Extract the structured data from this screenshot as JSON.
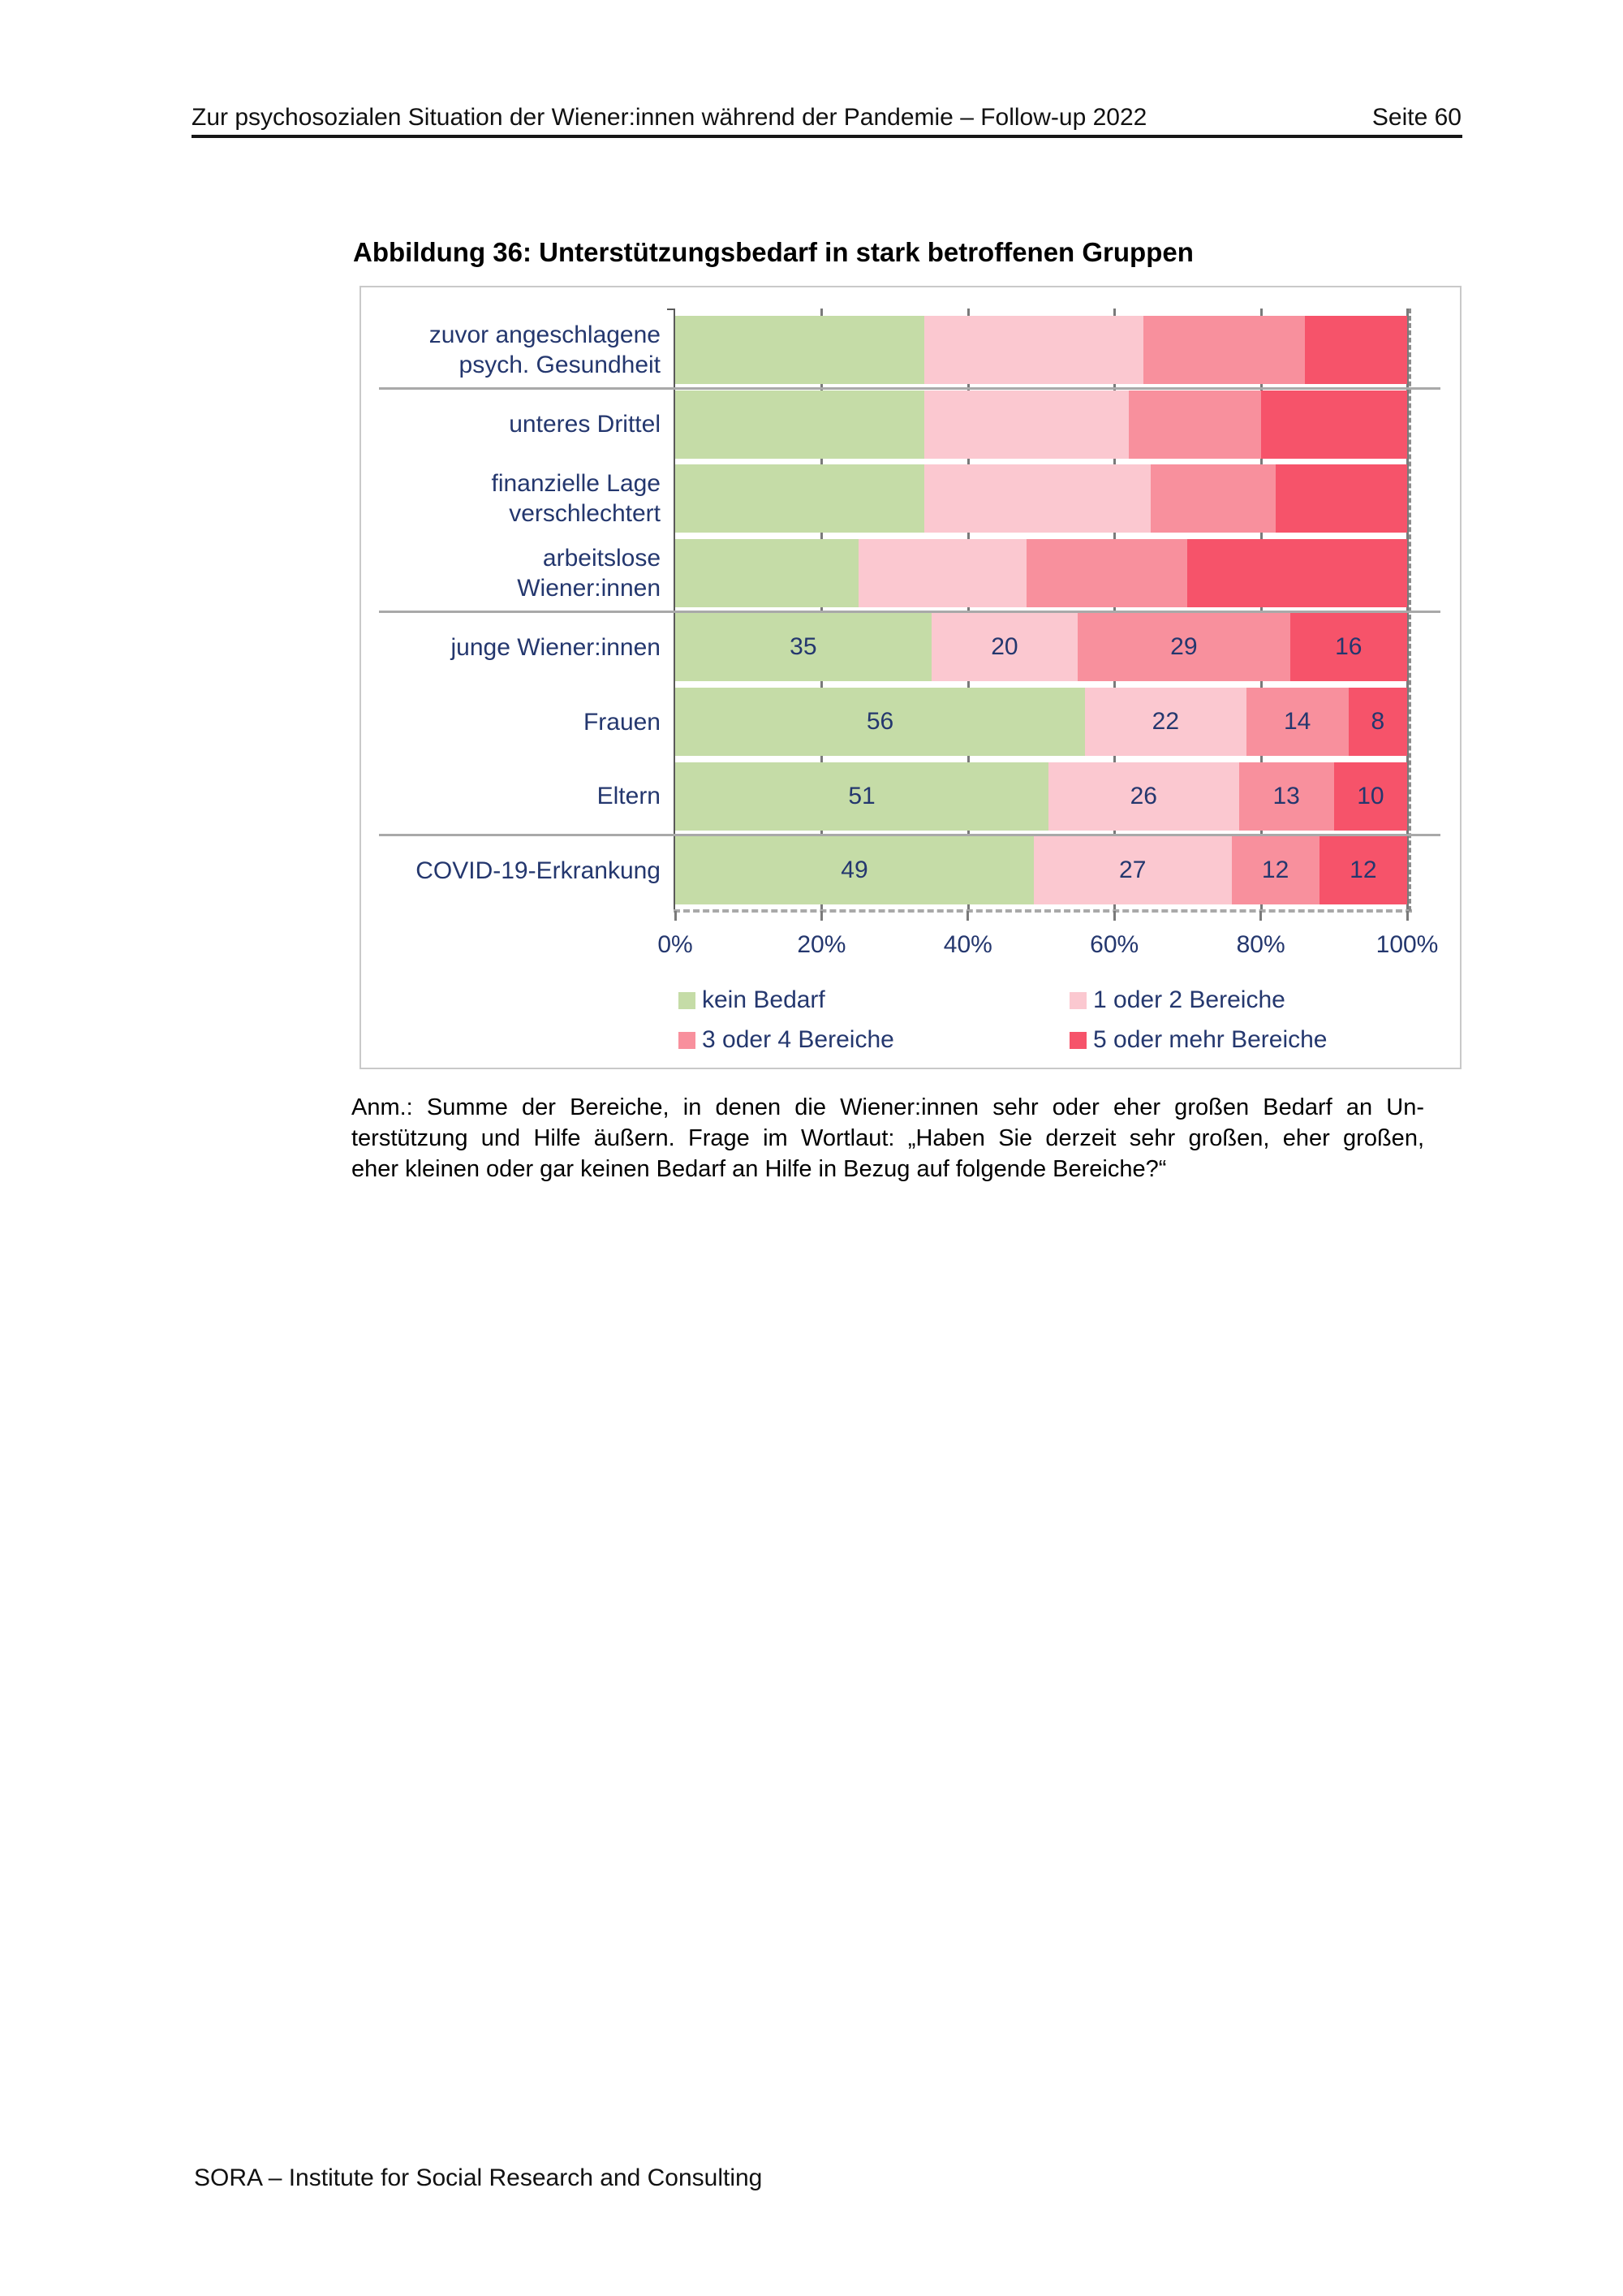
{
  "header": {
    "title": "Zur psychosozialen Situation der Wiener:innen während der Pandemie – Follow-up 2022",
    "page_label": "Seite 60"
  },
  "figure": {
    "title": "Abbildung 36: Unterstützungsbedarf in stark betroffenen Gruppen"
  },
  "chart_data": {
    "type": "bar",
    "stacked": true,
    "orientation": "horizontal",
    "categories": [
      [
        "zuvor angeschlagene",
        "psych. Gesundheit"
      ],
      [
        "unteres Drittel"
      ],
      [
        "finanzielle Lage",
        "verschlechtert"
      ],
      [
        "arbeitslose",
        "Wiener:innen"
      ],
      [
        "junge Wiener:innen"
      ],
      [
        "Frauen"
      ],
      [
        "Eltern"
      ],
      [
        "COVID-19-Erkrankung"
      ]
    ],
    "series": [
      {
        "name": "kein Bedarf",
        "color": "#c5dca7",
        "values": [
          34,
          34,
          34,
          25,
          35,
          56,
          51,
          49
        ]
      },
      {
        "name": "1 oder 2 Bereiche",
        "color": "#fbc8d0",
        "values": [
          30,
          28,
          31,
          23,
          20,
          22,
          26,
          27
        ]
      },
      {
        "name": "3 oder 4 Bereiche",
        "color": "#f8909d",
        "values": [
          22,
          18,
          17,
          22,
          29,
          14,
          13,
          12
        ]
      },
      {
        "name": "5 oder mehr Bereiche",
        "color": "#f6536a",
        "values": [
          14,
          20,
          18,
          30,
          16,
          8,
          10,
          12
        ]
      }
    ],
    "value_labels_visible": [
      false,
      false,
      false,
      false,
      true,
      true,
      true,
      true
    ],
    "x_tick_labels": [
      "0%",
      "20%",
      "40%",
      "60%",
      "80%",
      "100%"
    ],
    "xlim": [
      0,
      100
    ],
    "legend_position": "bottom",
    "group_separators_after_category_index": [
      0,
      3,
      6
    ],
    "text_color": "#24376e"
  },
  "note": {
    "lines": [
      "Anm.: Summe der Bereiche, in denen die Wiener:innen sehr oder eher großen Bedarf an Un-",
      "terstützung und Hilfe äußern. Frage im Wortlaut: „Haben Sie derzeit sehr großen, eher großen,",
      "eher kleinen oder gar keinen Bedarf an Hilfe in Bezug auf folgende Bereiche?“"
    ]
  },
  "footer": {
    "text": "SORA – Institute for Social Research and Consulting"
  }
}
